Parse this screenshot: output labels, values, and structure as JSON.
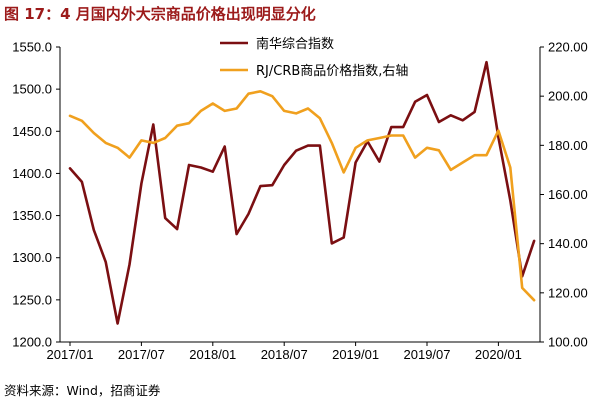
{
  "title": "图 17：4 月国内外大宗商品价格出现明显分化",
  "source": "资料来源：Wind，招商证券",
  "chart_data": {
    "type": "line",
    "title": "图 17：4 月国内外大宗商品价格出现明显分化",
    "x_tick_labels": [
      "2017/01",
      "2017/07",
      "2018/01",
      "2018/07",
      "2019/01",
      "2019/07",
      "2020/01"
    ],
    "y_left": {
      "ylim": [
        1200,
        1550
      ],
      "ticks": [
        "1200.0",
        "1250.0",
        "1300.0",
        "1350.0",
        "1400.0",
        "1450.0",
        "1500.0",
        "1550.0"
      ]
    },
    "y_right": {
      "ylim": [
        100,
        220
      ],
      "ticks": [
        "100.00",
        "120.00",
        "140.00",
        "160.00",
        "180.00",
        "200.00",
        "220.00"
      ]
    },
    "legend_position": "top",
    "grid": false,
    "series": [
      {
        "name": "南华综合指数",
        "axis": "left",
        "color": "#7b0f12",
        "x": [
          "2017/01",
          "2017/02",
          "2017/03",
          "2017/04",
          "2017/05",
          "2017/06",
          "2017/07",
          "2017/08",
          "2017/09",
          "2017/10",
          "2017/11",
          "2017/12",
          "2018/01",
          "2018/02",
          "2018/03",
          "2018/04",
          "2018/05",
          "2018/06",
          "2018/07",
          "2018/08",
          "2018/09",
          "2018/10",
          "2018/11",
          "2018/12",
          "2019/01",
          "2019/02",
          "2019/03",
          "2019/04",
          "2019/05",
          "2019/06",
          "2019/07",
          "2019/08",
          "2019/09",
          "2019/10",
          "2019/11",
          "2019/12",
          "2020/01",
          "2020/02",
          "2020/03",
          "2020/04"
        ],
        "values": [
          1406,
          1390,
          1333,
          1295,
          1222,
          1292,
          1388,
          1458,
          1347,
          1334,
          1410,
          1407,
          1402,
          1432,
          1328,
          1352,
          1385,
          1386,
          1410,
          1427,
          1433,
          1433,
          1317,
          1324,
          1413,
          1438,
          1414,
          1455,
          1455,
          1485,
          1493,
          1461,
          1469,
          1463,
          1473,
          1532,
          1443,
          1368,
          1278,
          1320
        ]
      },
      {
        "name": "RJ/CRB商品价格指数,右轴",
        "axis": "right",
        "color": "#f0a01e",
        "x": [
          "2017/01",
          "2017/02",
          "2017/03",
          "2017/04",
          "2017/05",
          "2017/06",
          "2017/07",
          "2017/08",
          "2017/09",
          "2017/10",
          "2017/11",
          "2017/12",
          "2018/01",
          "2018/02",
          "2018/03",
          "2018/04",
          "2018/05",
          "2018/06",
          "2018/07",
          "2018/08",
          "2018/09",
          "2018/10",
          "2018/11",
          "2018/12",
          "2019/01",
          "2019/02",
          "2019/03",
          "2019/04",
          "2019/05",
          "2019/06",
          "2019/07",
          "2019/08",
          "2019/09",
          "2019/10",
          "2019/11",
          "2019/12",
          "2020/01",
          "2020/02",
          "2020/03",
          "2020/04"
        ],
        "values": [
          192,
          190,
          185,
          181,
          179,
          175,
          182,
          181,
          183,
          188,
          189,
          194,
          197,
          194,
          195,
          201,
          202,
          200,
          194,
          193,
          195,
          191,
          181,
          169,
          179,
          182,
          183,
          184,
          184,
          175,
          179,
          178,
          170,
          173,
          176,
          176,
          186,
          171,
          122,
          117
        ]
      }
    ]
  }
}
